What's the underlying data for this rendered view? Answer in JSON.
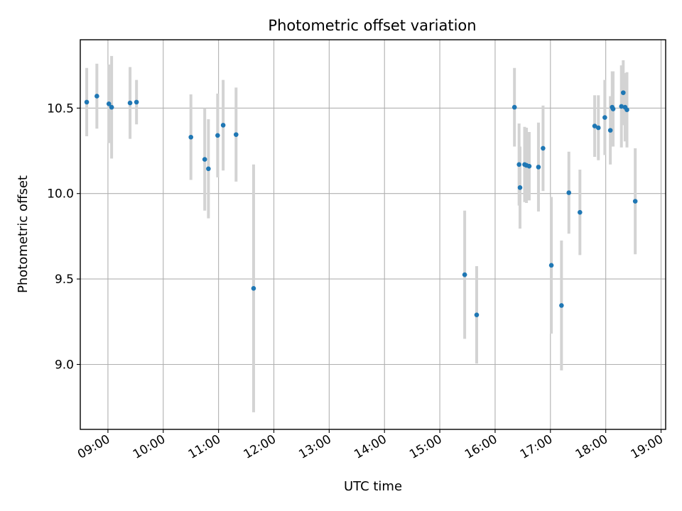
{
  "chart_data": {
    "type": "scatter",
    "title": "Photometric offset variation",
    "xlabel": "UTC time",
    "ylabel": "Photometric offset",
    "xlim": [
      "08:30",
      "19:05"
    ],
    "ylim": [
      8.62,
      10.9
    ],
    "x_ticks": [
      "09:00",
      "10:00",
      "11:00",
      "12:00",
      "13:00",
      "14:00",
      "15:00",
      "16:00",
      "17:00",
      "18:00",
      "19:00"
    ],
    "y_ticks": [
      "9.0",
      "9.5",
      "10.0",
      "10.5"
    ],
    "grid": true,
    "colors": {
      "marker": "#1f77b4",
      "errorbar": "#d3d3d3",
      "grid": "#b0b0b0"
    },
    "points": [
      {
        "x": "08:37",
        "y": 10.535,
        "yerr": 0.2
      },
      {
        "x": "08:48",
        "y": 10.57,
        "yerr": 0.19
      },
      {
        "x": "09:01",
        "y": 10.525,
        "yerr": 0.23
      },
      {
        "x": "09:04",
        "y": 10.505,
        "yerr": 0.3
      },
      {
        "x": "09:24",
        "y": 10.53,
        "yerr": 0.21
      },
      {
        "x": "09:31",
        "y": 10.535,
        "yerr": 0.13
      },
      {
        "x": "10:30",
        "y": 10.33,
        "yerr": 0.25
      },
      {
        "x": "10:45",
        "y": 10.2,
        "yerr": 0.3
      },
      {
        "x": "10:49",
        "y": 10.145,
        "yerr": 0.29
      },
      {
        "x": "10:59",
        "y": 10.34,
        "yerr": 0.245
      },
      {
        "x": "11:05",
        "y": 10.4,
        "yerr": 0.265
      },
      {
        "x": "11:19",
        "y": 10.345,
        "yerr": 0.275
      },
      {
        "x": "11:38",
        "y": 9.445,
        "yerr": 0.725
      },
      {
        "x": "15:27",
        "y": 9.525,
        "yerr": 0.375
      },
      {
        "x": "15:40",
        "y": 9.29,
        "yerr": 0.285
      },
      {
        "x": "16:21",
        "y": 10.505,
        "yerr": 0.23
      },
      {
        "x": "16:26",
        "y": 10.17,
        "yerr": 0.24
      },
      {
        "x": "16:27",
        "y": 10.035,
        "yerr": 0.24
      },
      {
        "x": "16:32",
        "y": 10.17,
        "yerr": 0.22
      },
      {
        "x": "16:34",
        "y": 10.165,
        "yerr": 0.22
      },
      {
        "x": "16:37",
        "y": 10.16,
        "yerr": 0.2
      },
      {
        "x": "16:47",
        "y": 10.155,
        "yerr": 0.26
      },
      {
        "x": "16:52",
        "y": 10.265,
        "yerr": 0.25
      },
      {
        "x": "17:01",
        "y": 9.58,
        "yerr": 0.4
      },
      {
        "x": "17:12",
        "y": 9.345,
        "yerr": 0.38
      },
      {
        "x": "17:20",
        "y": 10.005,
        "yerr": 0.24
      },
      {
        "x": "17:32",
        "y": 9.89,
        "yerr": 0.25
      },
      {
        "x": "17:48",
        "y": 10.395,
        "yerr": 0.18
      },
      {
        "x": "17:52",
        "y": 10.385,
        "yerr": 0.19
      },
      {
        "x": "17:59",
        "y": 10.445,
        "yerr": 0.22
      },
      {
        "x": "18:05",
        "y": 10.37,
        "yerr": 0.2
      },
      {
        "x": "18:07",
        "y": 10.505,
        "yerr": 0.21
      },
      {
        "x": "18:08",
        "y": 10.495,
        "yerr": 0.22
      },
      {
        "x": "18:17",
        "y": 10.51,
        "yerr": 0.24
      },
      {
        "x": "18:19",
        "y": 10.59,
        "yerr": 0.19
      },
      {
        "x": "18:21",
        "y": 10.505,
        "yerr": 0.2
      },
      {
        "x": "18:23",
        "y": 10.49,
        "yerr": 0.22
      },
      {
        "x": "18:32",
        "y": 9.955,
        "yerr": 0.31
      }
    ]
  }
}
